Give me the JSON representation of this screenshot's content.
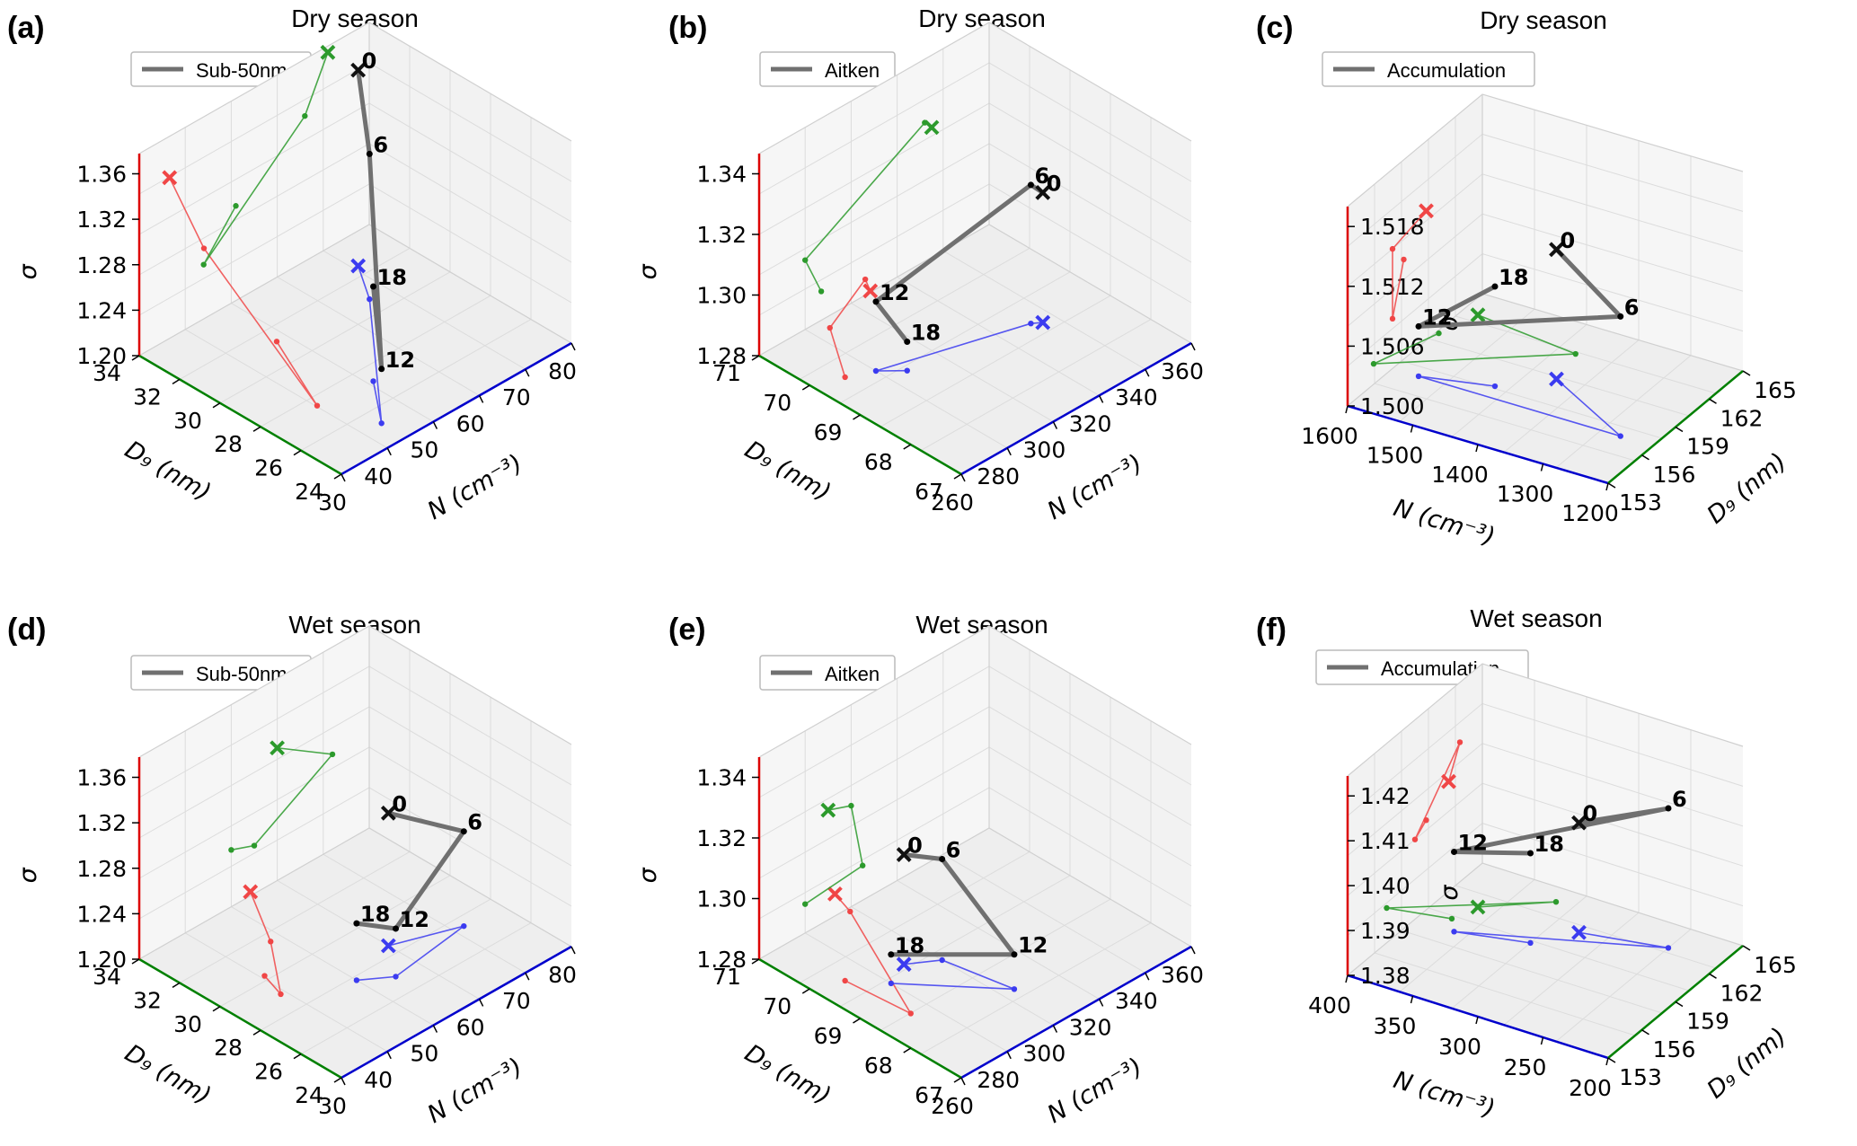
{
  "panels": [
    "(a)",
    "(b)",
    "(c)",
    "(d)",
    "(e)",
    "(f)"
  ],
  "chart_data": [
    {
      "type": "scatter3d-trajectory",
      "panel": "(a)",
      "title": "Dry season",
      "legend": "Sub-50nm",
      "xlabel": "N (cm⁻³)",
      "ylabel": "D₉ (nm)",
      "zlabel": "σ",
      "xlim": [
        30,
        80
      ],
      "ylim": [
        24,
        34
      ],
      "zlim": [
        1.2,
        1.36
      ],
      "xticks": [
        "30",
        "40",
        "50",
        "60",
        "70",
        "80"
      ],
      "yticks": [
        "24",
        "26",
        "28",
        "30",
        "32",
        "34"
      ],
      "zticks": [
        "1.20",
        "1.24",
        "1.28",
        "1.32",
        "1.36"
      ],
      "points": [
        {
          "hour": "0",
          "N": 71,
          "Dg": 32.5,
          "sigma": 1.355
        },
        {
          "hour": "6",
          "N": 66,
          "Dg": 30.8,
          "sigma": 1.315
        },
        {
          "hour": "12",
          "N": 44,
          "Dg": 25.2,
          "sigma": 1.243
        },
        {
          "hour": "18",
          "N": 51,
          "Dg": 27.2,
          "sigma": 1.275
        }
      ]
    },
    {
      "type": "scatter3d-trajectory",
      "panel": "(b)",
      "title": "Dry season",
      "legend": "Aitken",
      "xlabel": "N (cm⁻³)",
      "ylabel": "D₉ (nm)",
      "zlabel": "σ",
      "xlim": [
        260,
        360
      ],
      "ylim": [
        67,
        71
      ],
      "zlim": [
        1.28,
        1.35
      ],
      "xticks": [
        "260",
        "280",
        "300",
        "320",
        "340",
        "360"
      ],
      "yticks": [
        "67",
        "68",
        "69",
        "70",
        "71"
      ],
      "zticks": [
        "1.28",
        "1.30",
        "1.32",
        "1.34"
      ],
      "points": [
        {
          "hour": "0",
          "N": 335,
          "Dg": 68.8,
          "sigma": 1.325
        },
        {
          "hour": "6",
          "N": 332,
          "Dg": 68.9,
          "sigma": 1.328
        },
        {
          "hour": "12",
          "N": 280,
          "Dg": 69.6,
          "sigma": 1.304
        },
        {
          "hour": "18",
          "N": 287,
          "Dg": 69.3,
          "sigma": 1.29
        }
      ]
    },
    {
      "type": "scatter3d-trajectory",
      "panel": "(c)",
      "title": "Dry season",
      "legend": "Accumulation",
      "xlabel": "N (cm⁻³)",
      "ylabel": "D₉ (nm)",
      "zlabel": "σ",
      "xlim": [
        1200,
        1600
      ],
      "ylim": [
        153,
        165
      ],
      "zlim": [
        1.5,
        1.52
      ],
      "xticks": [
        "1200",
        "1300",
        "1400",
        "1500",
        "1600"
      ],
      "yticks": [
        "153",
        "156",
        "159",
        "162",
        "165"
      ],
      "zticks": [
        "1.500",
        "1.506",
        "1.512",
        "1.518"
      ],
      "points": [
        {
          "hour": "0",
          "N": 1400,
          "Dg": 160,
          "sigma": 1.513
        },
        {
          "hour": "6",
          "N": 1250,
          "Dg": 157,
          "sigma": 1.512
        },
        {
          "hour": "12",
          "N": 1560,
          "Dg": 157,
          "sigma": 1.505
        },
        {
          "hour": "18",
          "N": 1460,
          "Dg": 158,
          "sigma": 1.51
        }
      ]
    },
    {
      "type": "scatter3d-trajectory",
      "panel": "(d)",
      "title": "Wet season",
      "legend": "Sub-50nm",
      "xlabel": "N (cm⁻³)",
      "ylabel": "D₉ (nm)",
      "zlabel": "σ",
      "xlim": [
        30,
        80
      ],
      "ylim": [
        24,
        34
      ],
      "zlim": [
        1.2,
        1.36
      ],
      "xticks": [
        "30",
        "40",
        "50",
        "60",
        "70",
        "80"
      ],
      "yticks": [
        "24",
        "26",
        "28",
        "30",
        "32",
        "34"
      ],
      "zticks": [
        "1.20",
        "1.24",
        "1.28",
        "1.32",
        "1.36"
      ],
      "points": [
        {
          "hour": "0",
          "N": 60,
          "Dg": 28.5,
          "sigma": 1.305
        },
        {
          "hour": "6",
          "N": 72,
          "Dg": 27.5,
          "sigma": 1.275
        },
        {
          "hour": "12",
          "N": 55,
          "Dg": 27.0,
          "sigma": 1.238
        },
        {
          "hour": "18",
          "N": 50,
          "Dg": 27.8,
          "sigma": 1.245
        }
      ]
    },
    {
      "type": "scatter3d-trajectory",
      "panel": "(e)",
      "title": "Wet season",
      "legend": "Aitken",
      "xlabel": "N (cm⁻³)",
      "ylabel": "D₉ (nm)",
      "zlabel": "σ",
      "xlim": [
        260,
        360
      ],
      "ylim": [
        67,
        71
      ],
      "zlim": [
        1.28,
        1.35
      ],
      "xticks": [
        "260",
        "280",
        "300",
        "320",
        "340",
        "360"
      ],
      "yticks": [
        "67",
        "68",
        "69",
        "70",
        "71"
      ],
      "zticks": [
        "1.28",
        "1.30",
        "1.32",
        "1.34"
      ],
      "points": [
        {
          "hour": "0",
          "N": 290,
          "Dg": 69.5,
          "sigma": 1.318
        },
        {
          "hour": "6",
          "N": 300,
          "Dg": 69.2,
          "sigma": 1.315
        },
        {
          "hour": "12",
          "N": 305,
          "Dg": 68.0,
          "sigma": 1.292
        },
        {
          "hour": "18",
          "N": 280,
          "Dg": 69.3,
          "sigma": 1.29
        }
      ]
    },
    {
      "type": "scatter3d-trajectory",
      "panel": "(f)",
      "title": "Wet season",
      "legend": "Accumulation",
      "xlabel": "N (cm⁻³)",
      "ylabel": "D₉ (nm)",
      "zlabel": "σ",
      "xlim": [
        200,
        400
      ],
      "ylim": [
        153,
        165
      ],
      "zlim": [
        1.38,
        1.42
      ],
      "xticks": [
        "200",
        "250",
        "300",
        "350",
        "400"
      ],
      "yticks": [
        "153",
        "156",
        "159",
        "162",
        "165"
      ],
      "zticks": [
        "1.38",
        "1.39",
        "1.40",
        "1.41",
        "1.42"
      ],
      "points": [
        {
          "hour": "0",
          "N": 300,
          "Dg": 162,
          "sigma": 1.402
        },
        {
          "hour": "6",
          "N": 240,
          "Dg": 163,
          "sigma": 1.408
        },
        {
          "hour": "12",
          "N": 370,
          "Dg": 159,
          "sigma": 1.396
        },
        {
          "hour": "18",
          "N": 320,
          "Dg": 160,
          "sigma": 1.398
        }
      ]
    }
  ]
}
